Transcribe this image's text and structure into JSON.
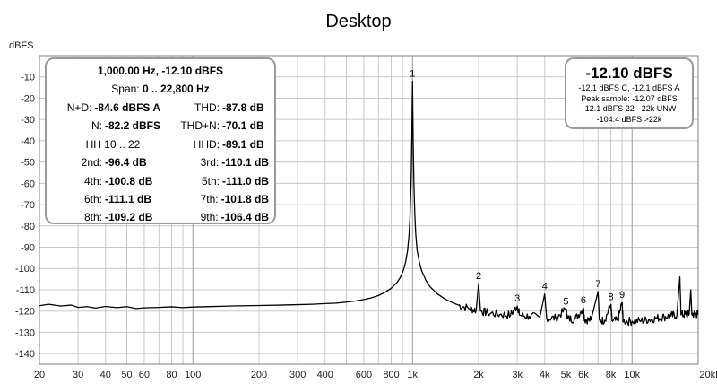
{
  "chart_data": {
    "type": "line",
    "title": "Desktop",
    "ylabel": "dBFS",
    "xlabel": "",
    "x_scale": "log",
    "xlim": [
      20,
      20000
    ],
    "ylim": [
      -145,
      0
    ],
    "y_ticks": [
      -10,
      -20,
      -30,
      -40,
      -50,
      -60,
      -70,
      -80,
      -90,
      -100,
      -110,
      -120,
      -130,
      -140
    ],
    "x_ticks": [
      {
        "v": 20,
        "label": "20"
      },
      {
        "v": 30,
        "label": "30"
      },
      {
        "v": 40,
        "label": "40"
      },
      {
        "v": 50,
        "label": "50"
      },
      {
        "v": 60,
        "label": "60"
      },
      {
        "v": 80,
        "label": "80"
      },
      {
        "v": 100,
        "label": "100"
      },
      {
        "v": 200,
        "label": "200"
      },
      {
        "v": 300,
        "label": "300"
      },
      {
        "v": 400,
        "label": "400"
      },
      {
        "v": 600,
        "label": "600"
      },
      {
        "v": 800,
        "label": "800"
      },
      {
        "v": 1000,
        "label": "1k"
      },
      {
        "v": 2000,
        "label": "2k"
      },
      {
        "v": 3000,
        "label": "3k"
      },
      {
        "v": 4000,
        "label": "4k"
      },
      {
        "v": 5000,
        "label": "5k"
      },
      {
        "v": 6000,
        "label": "6k"
      },
      {
        "v": 8000,
        "label": "8k"
      },
      {
        "v": 10000,
        "label": "10k"
      },
      {
        "v": 20000,
        "label": "20kHz"
      }
    ],
    "grid": true,
    "series": [
      {
        "color": "#000000",
        "points": [
          [
            20,
            -117.5
          ],
          [
            22,
            -116.8
          ],
          [
            25,
            -117.6
          ],
          [
            28,
            -117.2
          ],
          [
            30,
            -118.3
          ],
          [
            33,
            -117.9
          ],
          [
            36,
            -118.6
          ],
          [
            40,
            -117.8
          ],
          [
            45,
            -118.4
          ],
          [
            50,
            -117.9
          ],
          [
            55,
            -118.8
          ],
          [
            60,
            -118.5
          ],
          [
            70,
            -118.3
          ],
          [
            80,
            -118.0
          ],
          [
            90,
            -118.4
          ],
          [
            100,
            -118.1
          ],
          [
            120,
            -117.9
          ],
          [
            150,
            -117.6
          ],
          [
            200,
            -117.4
          ],
          [
            250,
            -117.2
          ],
          [
            300,
            -117.0
          ],
          [
            350,
            -116.8
          ],
          [
            400,
            -116.5
          ],
          [
            450,
            -116.3
          ],
          [
            500,
            -115.8
          ],
          [
            550,
            -115.3
          ],
          [
            600,
            -114.6
          ],
          [
            650,
            -113.8
          ],
          [
            700,
            -112.7
          ],
          [
            750,
            -111.2
          ],
          [
            800,
            -109.3
          ],
          [
            850,
            -106.6
          ],
          [
            880,
            -104.2
          ],
          [
            910,
            -100.7
          ],
          [
            930,
            -97.1
          ],
          [
            950,
            -91.5
          ],
          [
            965,
            -84.0
          ],
          [
            975,
            -75.0
          ],
          [
            985,
            -60.0
          ],
          [
            993,
            -40.0
          ],
          [
            998,
            -20.0
          ],
          [
            1000,
            -12.1
          ],
          [
            1002,
            -20.0
          ],
          [
            1007,
            -40.0
          ],
          [
            1015,
            -60.0
          ],
          [
            1025,
            -75.0
          ],
          [
            1035,
            -84.0
          ],
          [
            1050,
            -91.5
          ],
          [
            1075,
            -97.1
          ],
          [
            1100,
            -101.0
          ],
          [
            1150,
            -105.5
          ],
          [
            1200,
            -108.5
          ],
          [
            1300,
            -112.0
          ],
          [
            1400,
            -114.2
          ],
          [
            1500,
            -115.8
          ],
          [
            1600,
            -117.0
          ],
          [
            1800,
            -118.7
          ],
          [
            1950,
            -119.6
          ],
          [
            2000,
            -107.0
          ],
          [
            2040,
            -120.0
          ],
          [
            2200,
            -120.8
          ],
          [
            2500,
            -121.6
          ],
          [
            2800,
            -121.8
          ],
          [
            3000,
            -117.6
          ],
          [
            3080,
            -122.0
          ],
          [
            3400,
            -122.5
          ],
          [
            3800,
            -122.8
          ],
          [
            4000,
            -112.0
          ],
          [
            4080,
            -123.0
          ],
          [
            4500,
            -123.4
          ],
          [
            5000,
            -119.0
          ],
          [
            5080,
            -123.6
          ],
          [
            5500,
            -123.8
          ],
          [
            6000,
            -118.5
          ],
          [
            6080,
            -124.0
          ],
          [
            6500,
            -124.2
          ],
          [
            7000,
            -110.8
          ],
          [
            7100,
            -124.3
          ],
          [
            7500,
            -124.4
          ],
          [
            8000,
            -117.0
          ],
          [
            8100,
            -124.5
          ],
          [
            8600,
            -124.6
          ],
          [
            9000,
            -116.0
          ],
          [
            9100,
            -124.7
          ],
          [
            10000,
            -124.8
          ],
          [
            11000,
            -124.5
          ],
          [
            12000,
            -124.0
          ],
          [
            13000,
            -123.3
          ],
          [
            14000,
            -122.8
          ],
          [
            15000,
            -122.3
          ],
          [
            16000,
            -121.8
          ],
          [
            16500,
            -104.0
          ],
          [
            16700,
            -121.8
          ],
          [
            17500,
            -121.5
          ],
          [
            18200,
            -121.3
          ],
          [
            18500,
            -110.0
          ],
          [
            18700,
            -121.3
          ],
          [
            19500,
            -121.5
          ],
          [
            20000,
            -121.2
          ]
        ]
      }
    ],
    "harmonic_markers": [
      {
        "label": "1",
        "freq": 1000,
        "level": -12.1
      },
      {
        "label": "2",
        "freq": 2000,
        "level": -107.0
      },
      {
        "label": "3",
        "freq": 3000,
        "level": -117.6
      },
      {
        "label": "4",
        "freq": 4000,
        "level": -112.0
      },
      {
        "label": "5",
        "freq": 5000,
        "level": -119.0
      },
      {
        "label": "6",
        "freq": 6000,
        "level": -118.5
      },
      {
        "label": "7",
        "freq": 7000,
        "level": -110.8
      },
      {
        "label": "8",
        "freq": 8000,
        "level": -117.0
      },
      {
        "label": "9",
        "freq": 9000,
        "level": -116.0
      }
    ]
  },
  "stats": {
    "header": "1,000.00 Hz, -12.10 dBFS",
    "span_label": "Span:",
    "span_value": "0 .. 22,800 Hz",
    "hh_label": "HH 10 .. 22",
    "rows": [
      {
        "l1": "N+D:",
        "v1": "-84.6 dBFS A",
        "l2": "THD:",
        "v2": "-87.8 dB"
      },
      {
        "l1": "N:",
        "v1": "-82.2 dBFS",
        "l2": "THD+N:",
        "v2": "-70.1 dB"
      },
      {
        "l1": "2nd:",
        "v1": "-96.4 dB",
        "l2": "3rd:",
        "v2": "-110.1 dB"
      },
      {
        "l1": "4th:",
        "v1": "-100.8 dB",
        "l2": "5th:",
        "v2": "-111.0 dB"
      },
      {
        "l1": "6th:",
        "v1": "-111.1 dB",
        "l2": "7th:",
        "v2": "-101.8 dB"
      },
      {
        "l1": "8th:",
        "v1": "-109.2 dB",
        "l2": "9th:",
        "v2": "-106.4 dB"
      }
    ],
    "hhd_label": "HHD:",
    "hhd_value": "-89.1 dB"
  },
  "level": {
    "value": "-12.10 dBFS",
    "lines": [
      "-12.1 dBFS C, -12.1 dBFS A",
      "Peak sample: -12.07 dBFS",
      "-12.1 dBFS 22 - 22k UNW",
      "-104.4 dBFS >22k"
    ]
  },
  "style": {
    "grid_color": "#c8c8c8",
    "frame_color": "#808080",
    "trace_color": "#000000",
    "panel_border": "#9a9a9a"
  }
}
